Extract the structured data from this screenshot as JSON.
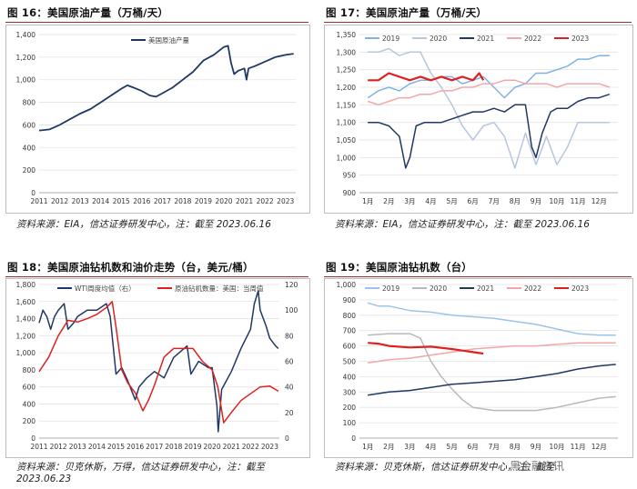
{
  "figures": {
    "f16": {
      "title": "图 16：美国原油产量（万桶/天）",
      "source": "资料来源：EIA，信达证券研发中心，注：截至 2023.06.16"
    },
    "f17": {
      "title": "图 17：美国原油产量（万桶/天）",
      "source": "资料来源：EIA，信达证券研发中心，注：截至 2023.06.16"
    },
    "f18": {
      "title": "图 18：美国原油钻机数和油价走势（台，美元/桶）",
      "source_line1": "资料来源：贝克休斯，万得，信达证券研发中心，注：截至",
      "source_line2": "2023.06.23"
    },
    "f19": {
      "title": "图 19：美国原油钻机数（台）",
      "source": "资料来源：贝克休斯，信达证券研发中心，注：截至"
    }
  },
  "watermark": "黑金融资讯",
  "chart_data": [
    {
      "id": "f16",
      "type": "line",
      "legend": [
        "美国原油产量"
      ],
      "legend_position": "top-center",
      "ylim": [
        0,
        1400
      ],
      "yticks": [
        "0",
        "200",
        "400",
        "600",
        "800",
        "1,000",
        "1,200",
        "1,400"
      ],
      "xticks": [
        "2011",
        "2012",
        "2013",
        "2014",
        "2015",
        "2016",
        "2017",
        "2018",
        "2019",
        "2020",
        "2021",
        "2022",
        "2023"
      ],
      "series": [
        {
          "name": "美国原油产量",
          "color": "#1f3864",
          "x": [
            2011.0,
            2011.5,
            2012.0,
            2012.5,
            2013.0,
            2013.5,
            2014.0,
            2014.5,
            2015.0,
            2015.3,
            2015.6,
            2016.0,
            2016.4,
            2016.7,
            2017.0,
            2017.5,
            2018.0,
            2018.5,
            2019.0,
            2019.5,
            2020.0,
            2020.2,
            2020.35,
            2020.5,
            2020.7,
            2021.0,
            2021.1,
            2021.2,
            2021.5,
            2022.0,
            2022.5,
            2023.0,
            2023.4
          ],
          "y": [
            550,
            560,
            600,
            650,
            700,
            740,
            800,
            860,
            920,
            950,
            930,
            900,
            860,
            850,
            880,
            930,
            1000,
            1070,
            1170,
            1220,
            1290,
            1300,
            1150,
            1050,
            1080,
            1100,
            1000,
            1100,
            1120,
            1160,
            1200,
            1220,
            1230
          ]
        }
      ]
    },
    {
      "id": "f17",
      "type": "line",
      "legend": [
        "2019",
        "2020",
        "2021",
        "2022",
        "2023"
      ],
      "legend_position": "top",
      "ylim": [
        900,
        1350
      ],
      "yticks": [
        "900",
        "950",
        "1,000",
        "1,050",
        "1,100",
        "1,150",
        "1,200",
        "1,250",
        "1,300",
        "1,350"
      ],
      "xticks": [
        "1月",
        "2月",
        "3月",
        "4月",
        "5月",
        "6月",
        "7月",
        "8月",
        "9月",
        "10月",
        "11月",
        "12月"
      ],
      "series": [
        {
          "name": "2019",
          "color": "#7fb2e5",
          "x": [
            1,
            1.5,
            2,
            2.5,
            3,
            3.5,
            4,
            4.5,
            5,
            5.5,
            6,
            6.5,
            7,
            7.5,
            8,
            8.5,
            9,
            9.5,
            10,
            10.5,
            11,
            11.5,
            12,
            12.5
          ],
          "y": [
            1170,
            1190,
            1200,
            1190,
            1210,
            1220,
            1220,
            1230,
            1230,
            1210,
            1220,
            1230,
            1200,
            1170,
            1200,
            1210,
            1240,
            1240,
            1250,
            1260,
            1280,
            1280,
            1290,
            1290
          ]
        },
        {
          "name": "2020",
          "color": "#b7c7dd",
          "x": [
            1,
            1.5,
            2,
            2.5,
            3,
            3.5,
            4,
            4.5,
            5,
            5.5,
            6,
            6.5,
            7,
            7.5,
            8,
            8.5,
            9,
            9.5,
            10,
            10.5,
            11,
            11.5,
            12,
            12.5
          ],
          "y": [
            1300,
            1300,
            1310,
            1290,
            1300,
            1300,
            1240,
            1200,
            1150,
            1090,
            1050,
            1090,
            1100,
            1060,
            970,
            1070,
            980,
            1060,
            980,
            1030,
            1100,
            1100,
            1100,
            1100
          ]
        },
        {
          "name": "2021",
          "color": "#1f3864",
          "x": [
            1,
            1.5,
            2,
            2.5,
            2.8,
            3,
            3.3,
            3.7,
            4,
            4.5,
            5,
            5.5,
            6,
            6.5,
            7,
            7.5,
            8,
            8.5,
            8.8,
            9,
            9.3,
            9.7,
            10,
            10.5,
            11,
            11.5,
            12,
            12.5
          ],
          "y": [
            1100,
            1100,
            1090,
            1060,
            970,
            1000,
            1090,
            1100,
            1100,
            1100,
            1110,
            1120,
            1130,
            1130,
            1140,
            1130,
            1150,
            1150,
            1030,
            1000,
            1070,
            1130,
            1140,
            1140,
            1160,
            1170,
            1170,
            1180
          ]
        },
        {
          "name": "2022",
          "color": "#f4a6a6",
          "x": [
            1,
            1.5,
            2,
            2.5,
            3,
            3.5,
            4,
            4.5,
            5,
            5.5,
            6,
            6.5,
            7,
            7.5,
            8,
            8.5,
            9,
            9.5,
            10,
            10.5,
            11,
            11.5,
            12,
            12.5
          ],
          "y": [
            1160,
            1150,
            1160,
            1170,
            1170,
            1180,
            1180,
            1190,
            1190,
            1200,
            1200,
            1210,
            1210,
            1220,
            1220,
            1210,
            1210,
            1210,
            1200,
            1210,
            1210,
            1210,
            1210,
            1200
          ]
        },
        {
          "name": "2023",
          "color": "#e02020",
          "x": [
            1,
            1.5,
            2,
            2.5,
            3,
            3.5,
            4,
            4.5,
            5,
            5.5,
            6,
            6.3,
            6.5
          ],
          "y": [
            1220,
            1220,
            1240,
            1230,
            1220,
            1230,
            1220,
            1230,
            1220,
            1230,
            1220,
            1240,
            1220
          ]
        }
      ]
    },
    {
      "id": "f18",
      "type": "line",
      "legend": [
        "WTI周度均值（右）",
        "原油钻机数量：美国：当周值"
      ],
      "legend_position": "top",
      "ylim": [
        0,
        1800
      ],
      "y2lim": [
        0,
        120
      ],
      "yticks": [
        "0",
        "200",
        "400",
        "600",
        "800",
        "1,000",
        "1,200",
        "1,400",
        "1,600",
        "1,800"
      ],
      "y2ticks": [
        "0",
        "20",
        "40",
        "60",
        "80",
        "100",
        "120"
      ],
      "xticks": [
        "2011",
        "2012",
        "2013",
        "2014",
        "2015",
        "2016",
        "2017",
        "2018",
        "2019",
        "2020",
        "2021",
        "2022",
        "2023"
      ],
      "series": [
        {
          "name": "WTI周度均值（右）",
          "axis": "right",
          "color": "#1f3864",
          "x": [
            2011.0,
            2011.2,
            2011.4,
            2011.6,
            2011.8,
            2012.0,
            2012.3,
            2012.5,
            2012.8,
            2013.0,
            2013.5,
            2014.0,
            2014.5,
            2014.7,
            2015.0,
            2015.3,
            2015.6,
            2016.0,
            2016.2,
            2016.6,
            2017.0,
            2017.5,
            2018.0,
            2018.7,
            2018.9,
            2019.3,
            2019.8,
            2020.0,
            2020.25,
            2020.32,
            2020.5,
            2021.0,
            2021.5,
            2022.0,
            2022.2,
            2022.4,
            2022.5,
            2022.8,
            2023.0,
            2023.3,
            2023.45
          ],
          "y": [
            90,
            100,
            95,
            85,
            95,
            100,
            105,
            85,
            90,
            95,
            100,
            100,
            105,
            95,
            50,
            55,
            45,
            30,
            40,
            47,
            52,
            47,
            63,
            72,
            50,
            60,
            55,
            55,
            25,
            5,
            38,
            52,
            70,
            85,
            105,
            115,
            100,
            88,
            78,
            72,
            70
          ]
        },
        {
          "name": "原油钻机数量：美国：当周值",
          "axis": "left",
          "color": "#e02020",
          "x": [
            2011.0,
            2011.5,
            2012.0,
            2012.5,
            2013.0,
            2013.5,
            2014.0,
            2014.5,
            2014.8,
            2015.0,
            2015.3,
            2015.6,
            2016.0,
            2016.4,
            2016.7,
            2017.0,
            2017.5,
            2018.0,
            2018.5,
            2019.0,
            2019.5,
            2020.0,
            2020.3,
            2020.6,
            2021.0,
            2021.5,
            2022.0,
            2022.5,
            2023.0,
            2023.45
          ],
          "y": [
            780,
            950,
            1200,
            1380,
            1360,
            1400,
            1450,
            1530,
            1600,
            1300,
            800,
            650,
            530,
            320,
            450,
            620,
            950,
            1050,
            1050,
            1050,
            900,
            800,
            600,
            180,
            300,
            440,
            520,
            600,
            610,
            550
          ]
        }
      ]
    },
    {
      "id": "f19",
      "type": "line",
      "legend": [
        "2019",
        "2020",
        "2021",
        "2022",
        "2023"
      ],
      "legend_position": "top",
      "ylim": [
        0,
        1000
      ],
      "yticks": [
        "0",
        "100",
        "200",
        "300",
        "400",
        "500",
        "600",
        "700",
        "800",
        "900",
        "1,000"
      ],
      "xticks": [
        "1月",
        "2月",
        "3月",
        "4月",
        "5月",
        "6月",
        "7月",
        "8月",
        "9月",
        "10月",
        "11月",
        "12月"
      ],
      "series": [
        {
          "name": "2019",
          "color": "#9cc3ea",
          "x": [
            1,
            1.5,
            2,
            3,
            4,
            5,
            6,
            7,
            8,
            9,
            10,
            11,
            12,
            12.8
          ],
          "y": [
            880,
            860,
            860,
            830,
            820,
            800,
            790,
            780,
            760,
            740,
            710,
            680,
            670,
            670
          ]
        },
        {
          "name": "2020",
          "color": "#b8b8c0",
          "x": [
            1,
            2,
            3,
            3.5,
            4,
            4.5,
            5,
            5.5,
            6,
            7,
            8,
            9,
            10,
            11,
            12,
            12.8
          ],
          "y": [
            670,
            680,
            680,
            650,
            500,
            400,
            320,
            250,
            200,
            180,
            180,
            180,
            200,
            230,
            260,
            270
          ]
        },
        {
          "name": "2021",
          "color": "#1f3864",
          "x": [
            1,
            2,
            3,
            4,
            5,
            6,
            7,
            8,
            9,
            10,
            11,
            12,
            12.8
          ],
          "y": [
            280,
            300,
            310,
            330,
            350,
            360,
            370,
            380,
            400,
            420,
            450,
            470,
            480
          ]
        },
        {
          "name": "2022",
          "color": "#f4a6a6",
          "x": [
            1,
            2,
            3,
            4,
            5,
            6,
            7,
            8,
            9,
            10,
            11,
            12,
            12.8
          ],
          "y": [
            490,
            510,
            520,
            540,
            560,
            580,
            590,
            600,
            600,
            610,
            620,
            620,
            620
          ]
        },
        {
          "name": "2023",
          "color": "#e02020",
          "x": [
            1,
            1.5,
            2,
            3,
            4,
            5,
            6,
            6.5
          ],
          "y": [
            620,
            615,
            600,
            590,
            595,
            580,
            560,
            550
          ]
        }
      ]
    }
  ]
}
